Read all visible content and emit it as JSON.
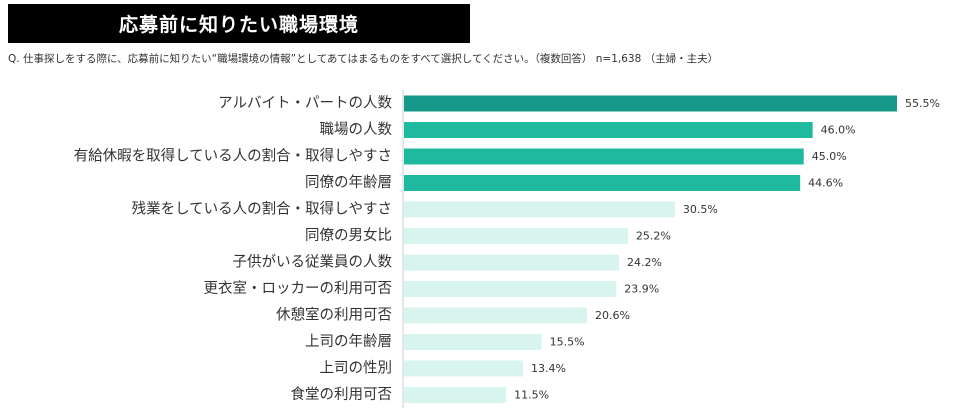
{
  "header": {
    "title": "応募前に知りたい職場環境",
    "question": "Q. 仕事探しをする際に、応募前に知りたい“職場環境の情報”としてあてはまるものをすべて選択してください。（複数回答） n=1,638 （主婦・主夫）"
  },
  "colors": {
    "title_bg": "#000000",
    "title_text": "#ffffff",
    "top1": "#16998a",
    "top4": "#1fb9a0",
    "rest": "#d8f4ee",
    "axis": "#cccccc"
  },
  "chart_data": {
    "type": "bar",
    "orientation": "horizontal",
    "title": "応募前に知りたい職場環境",
    "categories": [
      "アルバイト・パートの人数",
      "職場の人数",
      "有給休暇を取得している人の割合・取得しやすさ",
      "同僚の年齢層",
      "残業をしている人の割合・取得しやすさ",
      "同僚の男女比",
      "子供がいる従業員の人数",
      "更衣室・ロッカーの利用可否",
      "休憩室の利用可否",
      "上司の年齢層",
      "上司の性別",
      "食堂の利用可否"
    ],
    "values": [
      55.5,
      46.0,
      45.0,
      44.6,
      30.5,
      25.2,
      24.2,
      23.9,
      20.6,
      15.5,
      13.4,
      11.5
    ],
    "value_labels": [
      "55.5%",
      "46.0%",
      "45.0%",
      "44.6%",
      "30.5%",
      "25.2%",
      "24.2%",
      "23.9%",
      "20.6%",
      "15.5%",
      "13.4%",
      "11.5%"
    ],
    "xlim": [
      0,
      55.5
    ],
    "grid": false,
    "legend": "none"
  }
}
